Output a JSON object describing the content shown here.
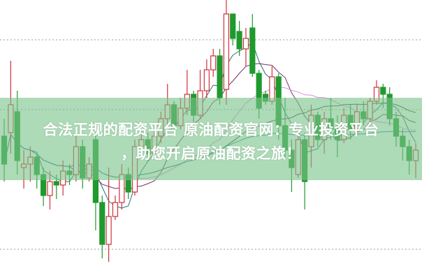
{
  "caption": {
    "line1": "合法正规的配资平台 原油配资官网：专业投资平台",
    "line2": "，助您开启原油配资之旅！"
  },
  "colors": {
    "up": "#d0303a",
    "down": "#1f9a2e",
    "banner": "#7ac48a",
    "ma": [
      "#2a6f7a",
      "#7a2f6a",
      "#e08ae0",
      "#3a4a3a",
      "#2a8a9a"
    ],
    "grid": "#999999"
  },
  "chart_data": {
    "type": "candlestick",
    "title": "",
    "xlabel": "",
    "ylabel": "",
    "grid": true,
    "moving_averages": [
      5,
      10,
      20,
      30,
      60
    ],
    "candles": [
      [
        205,
        230,
        140,
        165
      ],
      [
        210,
        313,
        180,
        250
      ],
      [
        240,
        270,
        150,
        170
      ],
      [
        160,
        185,
        130,
        165
      ],
      [
        165,
        190,
        140,
        175
      ],
      [
        175,
        180,
        130,
        150
      ],
      [
        150,
        160,
        105,
        120
      ],
      [
        120,
        155,
        100,
        140
      ],
      [
        140,
        150,
        115,
        135
      ],
      [
        135,
        170,
        120,
        155
      ],
      [
        155,
        165,
        135,
        150
      ],
      [
        150,
        215,
        140,
        190
      ],
      [
        190,
        200,
        130,
        145
      ],
      [
        145,
        175,
        140,
        165
      ],
      [
        200,
        210,
        70,
        110
      ],
      [
        110,
        120,
        30,
        50
      ],
      [
        50,
        160,
        25,
        90
      ],
      [
        90,
        120,
        85,
        110
      ],
      [
        110,
        165,
        100,
        150
      ],
      [
        150,
        160,
        115,
        125
      ],
      [
        125,
        200,
        120,
        190
      ],
      [
        190,
        215,
        180,
        200
      ],
      [
        200,
        210,
        170,
        180
      ],
      [
        180,
        215,
        175,
        205
      ],
      [
        205,
        240,
        195,
        230
      ],
      [
        230,
        280,
        220,
        250
      ],
      [
        250,
        255,
        210,
        220
      ],
      [
        220,
        260,
        215,
        245
      ],
      [
        245,
        300,
        235,
        265
      ],
      [
        265,
        270,
        225,
        235
      ],
      [
        235,
        300,
        230,
        270
      ],
      [
        270,
        315,
        260,
        300
      ],
      [
        300,
        330,
        290,
        320
      ],
      [
        320,
        330,
        250,
        260
      ],
      [
        272,
        400,
        250,
        380
      ],
      [
        380,
        380,
        335,
        345
      ],
      [
        355,
        370,
        320,
        330
      ],
      [
        330,
        360,
        305,
        345
      ],
      [
        360,
        380,
        290,
        295
      ],
      [
        295,
        300,
        230,
        245
      ],
      [
        265,
        270,
        250,
        255
      ],
      [
        255,
        305,
        250,
        290
      ],
      [
        290,
        295,
        200,
        220
      ],
      [
        220,
        260,
        175,
        185
      ],
      [
        185,
        200,
        125,
        160
      ],
      [
        150,
        220,
        145,
        200
      ],
      [
        200,
        210,
        100,
        140
      ],
      [
        190,
        250,
        160,
        235
      ],
      [
        235,
        240,
        190,
        200
      ],
      [
        200,
        240,
        180,
        230
      ],
      [
        230,
        260,
        200,
        215
      ],
      [
        215,
        235,
        175,
        200
      ],
      [
        200,
        245,
        195,
        235
      ],
      [
        235,
        250,
        200,
        215
      ],
      [
        215,
        250,
        210,
        240
      ],
      [
        240,
        255,
        220,
        230
      ],
      [
        230,
        260,
        225,
        255
      ],
      [
        255,
        285,
        250,
        275
      ],
      [
        275,
        280,
        245,
        265
      ],
      [
        265,
        275,
        220,
        230
      ],
      [
        230,
        240,
        190,
        205
      ],
      [
        205,
        215,
        170,
        190
      ],
      [
        190,
        200,
        150,
        170
      ],
      [
        170,
        195,
        145,
        185
      ]
    ],
    "grid_levels": [
      343,
      243,
      43
    ]
  }
}
